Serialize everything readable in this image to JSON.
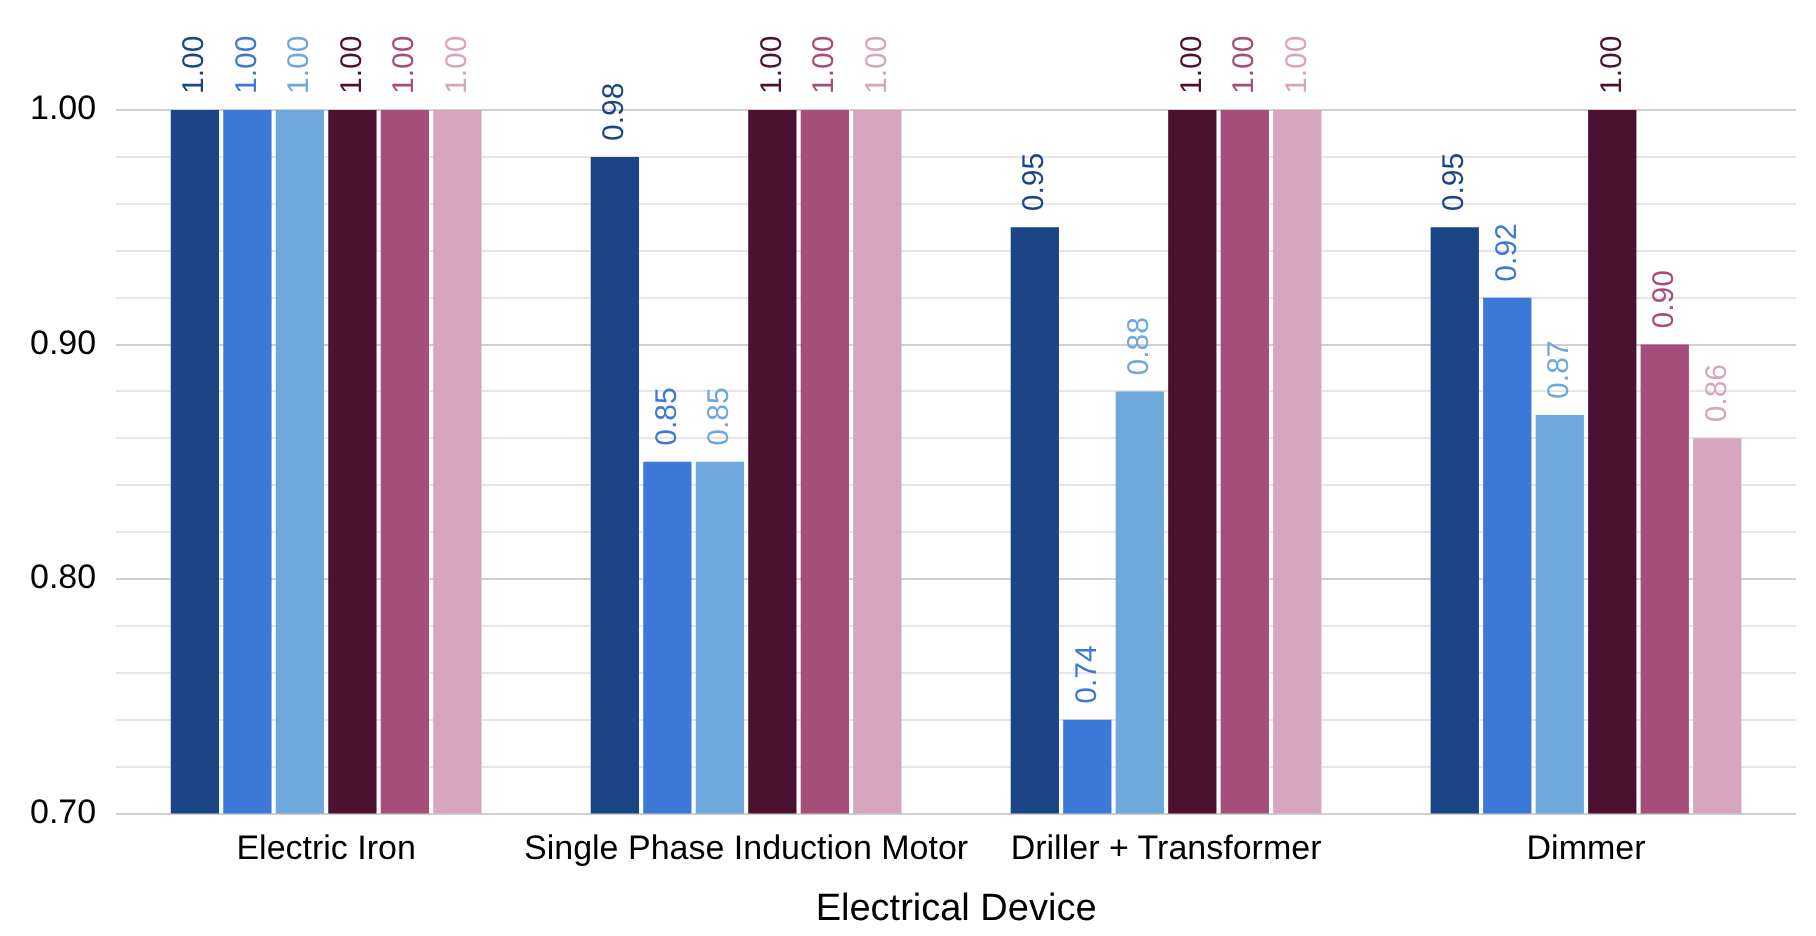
{
  "chart_data": {
    "type": "bar",
    "xlabel": "Electrical Device",
    "categories": [
      "Electric Iron",
      "Single Phase Induction Motor",
      "Driller + Transformer",
      "Dimmer"
    ],
    "series": [
      {
        "color": "#1c4587",
        "values": [
          1.0,
          0.98,
          0.95,
          0.95
        ],
        "value_labels": [
          "1.00",
          "0.98",
          "0.95",
          "0.95"
        ]
      },
      {
        "color": "#3c78d8",
        "values": [
          1.0,
          0.85,
          0.74,
          0.92
        ],
        "value_labels": [
          "1.00",
          "0.85",
          "0.74",
          "0.92"
        ]
      },
      {
        "color": "#6fa8dc",
        "values": [
          1.0,
          0.85,
          0.88,
          0.87
        ],
        "value_labels": [
          "1.00",
          "0.85",
          "0.88",
          "0.87"
        ]
      },
      {
        "color": "#4c1130",
        "values": [
          1.0,
          1.0,
          1.0,
          1.0
        ],
        "value_labels": [
          "1.00",
          "1.00",
          "1.00",
          "1.00"
        ]
      },
      {
        "color": "#a64d79",
        "values": [
          1.0,
          1.0,
          1.0,
          0.9
        ],
        "value_labels": [
          "1.00",
          "1.00",
          "1.00",
          "0.90"
        ]
      },
      {
        "color": "#d5a6bd",
        "values": [
          1.0,
          1.0,
          1.0,
          0.86
        ],
        "value_labels": [
          "1.00",
          "1.00",
          "1.00",
          "0.86"
        ]
      }
    ],
    "ylim": [
      0.7,
      1.0
    ],
    "yticks": [
      {
        "value": 0.7,
        "label": "0.70"
      },
      {
        "value": 0.72,
        "label": null
      },
      {
        "value": 0.74,
        "label": null
      },
      {
        "value": 0.76,
        "label": null
      },
      {
        "value": 0.78,
        "label": null
      },
      {
        "value": 0.8,
        "label": "0.80"
      },
      {
        "value": 0.82,
        "label": null
      },
      {
        "value": 0.84,
        "label": null
      },
      {
        "value": 0.86,
        "label": null
      },
      {
        "value": 0.88,
        "label": null
      },
      {
        "value": 0.9,
        "label": "0.90"
      },
      {
        "value": 0.92,
        "label": null
      },
      {
        "value": 0.94,
        "label": null
      },
      {
        "value": 0.96,
        "label": null
      },
      {
        "value": 0.98,
        "label": null
      },
      {
        "value": 1.0,
        "label": "1.00"
      }
    ],
    "grid": "y",
    "legend": false
  }
}
